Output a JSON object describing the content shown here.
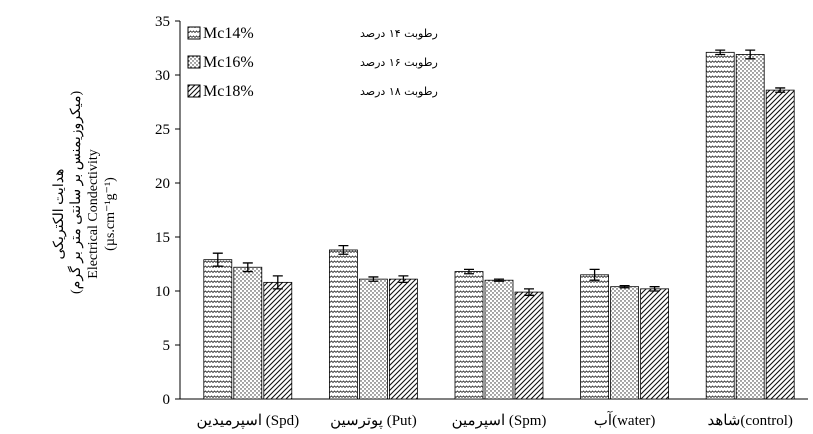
{
  "chart_data": {
    "type": "bar",
    "ylim": [
      0,
      35
    ],
    "yticks": [
      0,
      5,
      10,
      15,
      20,
      25,
      30,
      35
    ],
    "ylabel_lines": [
      "هدایت الکتریکی",
      "(میکروزیمنس بر سانتی متر بر گرم)",
      "Electrical Condectivity",
      "(µs.cm⁻¹g⁻¹)"
    ],
    "categories": [
      "اسپرمیدین (Spd)",
      "پوترسین (Put)",
      "اسپرمین (Spm)",
      "آب(water)",
      "شاهد(control)"
    ],
    "series": [
      {
        "name": "Mc14%",
        "name_fa": "رطوبت ۱۴ درصد",
        "values": [
          12.9,
          13.8,
          11.8,
          11.5,
          32.1
        ],
        "errors": [
          0.6,
          0.4,
          0.2,
          0.5,
          0.2
        ]
      },
      {
        "name": "Mc16%",
        "name_fa": "رطوبت ۱۶ درصد",
        "values": [
          12.2,
          11.1,
          11.0,
          10.4,
          31.9
        ],
        "errors": [
          0.4,
          0.2,
          0.1,
          0.1,
          0.4
        ]
      },
      {
        "name": "Mc18%",
        "name_fa": "رطوبت ۱۸ درصد",
        "values": [
          10.8,
          11.1,
          9.9,
          10.2,
          28.6
        ],
        "errors": [
          0.6,
          0.3,
          0.3,
          0.2,
          0.2
        ]
      }
    ],
    "legend_position": "top-left",
    "grid": false
  }
}
